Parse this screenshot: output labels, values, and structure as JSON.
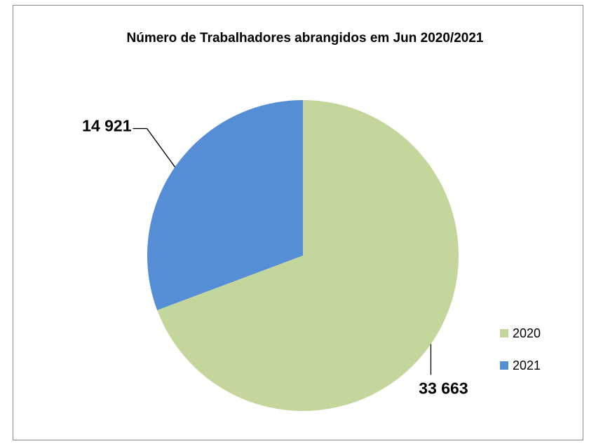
{
  "chart_data": {
    "type": "pie",
    "title": "Número de Trabalhadores abrangidos em Jun 2020/2021",
    "categories": [
      "2020",
      "2021"
    ],
    "values": [
      33663,
      14921
    ],
    "value_labels": [
      "33 663",
      "14 921"
    ],
    "colors": [
      "#c3d69b",
      "#558ed5"
    ],
    "legend": "right"
  }
}
